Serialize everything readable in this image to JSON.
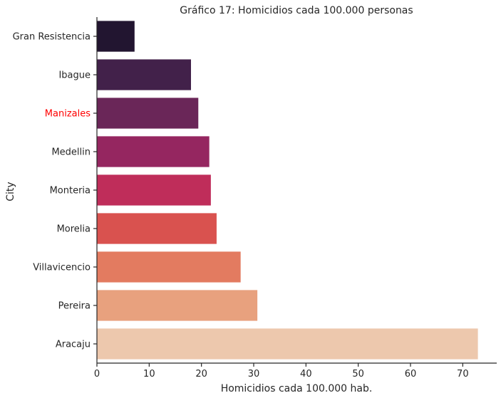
{
  "chart_data": {
    "type": "bar",
    "orientation": "horizontal",
    "title": "Gráfico 17: Homicidios cada 100.000 personas",
    "xlabel": "Homicidios cada 100.000 hab.",
    "ylabel": "City",
    "xlim": [
      0,
      76.5
    ],
    "xticks": [
      0,
      10,
      20,
      30,
      40,
      50,
      60,
      70
    ],
    "categories": [
      "Gran Resistencia",
      "Ibague",
      "Manizales",
      "Medellin",
      "Monteria",
      "Morelia",
      "Villavicencio",
      "Pereira",
      "Aracaju"
    ],
    "values": [
      7.2,
      18.0,
      19.4,
      21.5,
      21.8,
      22.9,
      27.5,
      30.7,
      72.9
    ],
    "colors": [
      "#221530",
      "#42214a",
      "#6a2658",
      "#952660",
      "#bf2d5a",
      "#d9524f",
      "#e37b60",
      "#e8a17e",
      "#edc8ad"
    ],
    "highlight_category": "Manizales",
    "highlight_color": "#ff0000",
    "grid": false
  }
}
